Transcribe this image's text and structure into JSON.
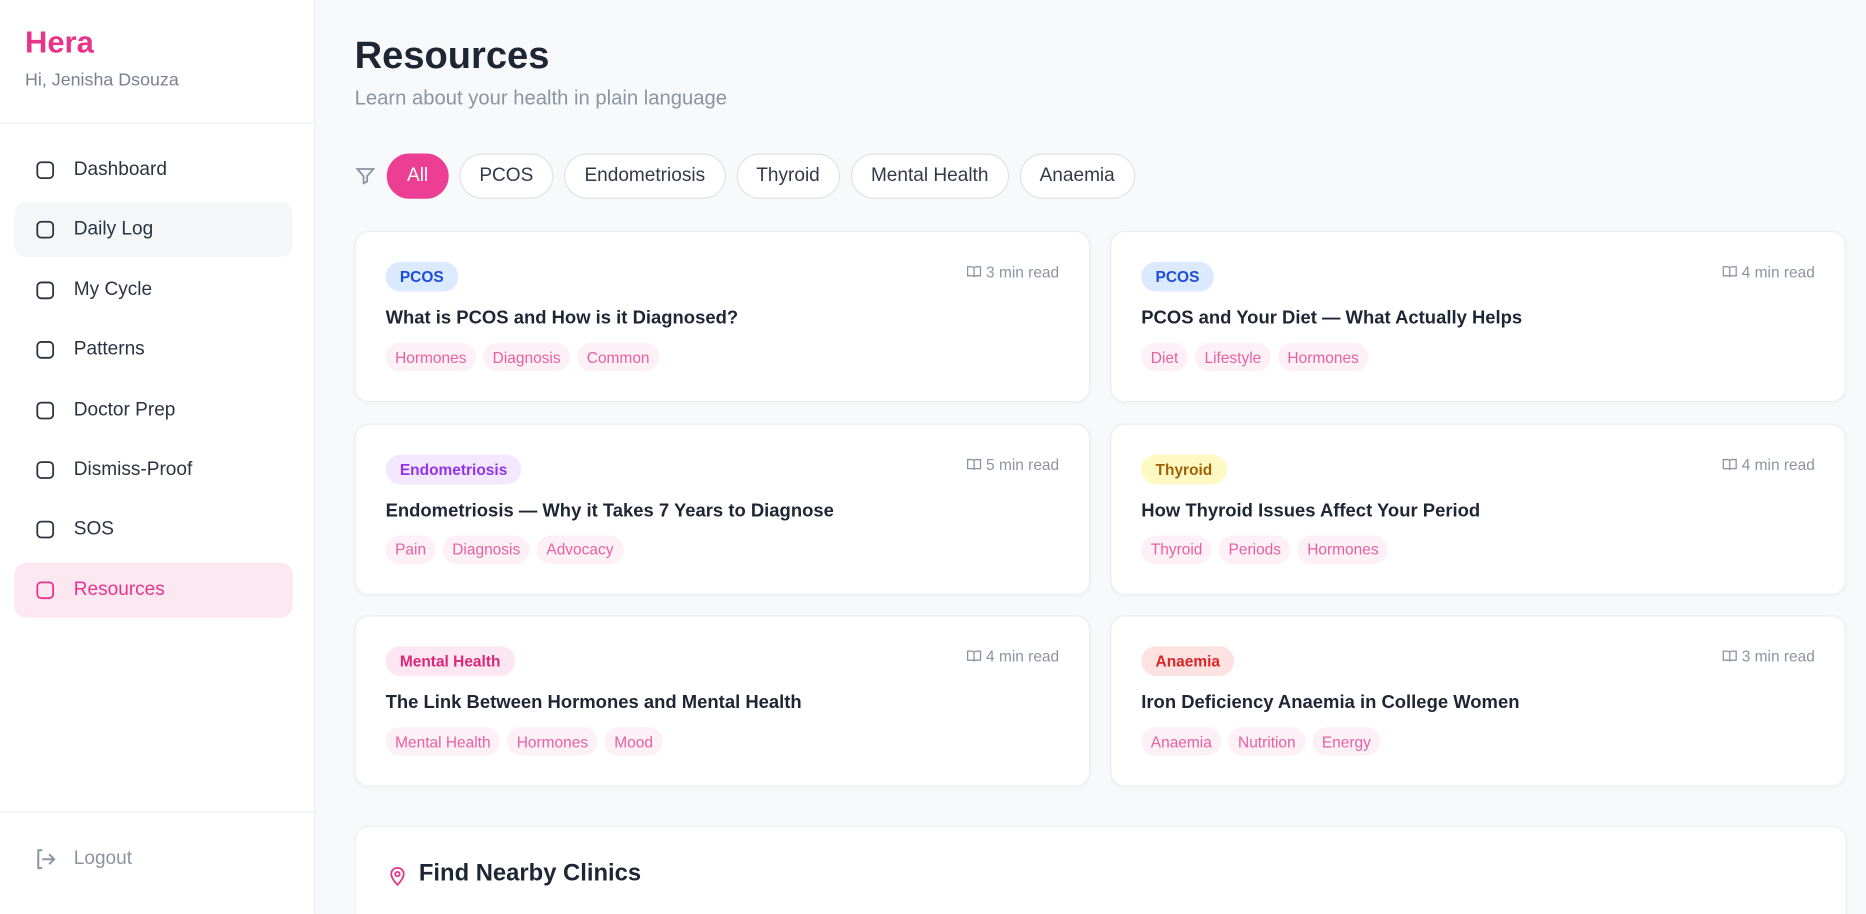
{
  "sidebar": {
    "brand": "Hera",
    "greeting": "Hi, Jenisha Dsouza",
    "nav": [
      "Dashboard",
      "Daily Log",
      "My Cycle",
      "Patterns",
      "Doctor Prep",
      "Dismiss-Proof",
      "SOS",
      "Resources"
    ],
    "logout": "Logout"
  },
  "header": {
    "title": "Resources",
    "subtitle": "Learn about your health in plain language"
  },
  "filters": [
    "All",
    "PCOS",
    "Endometriosis",
    "Thyroid",
    "Mental Health",
    "Anaemia"
  ],
  "articles": [
    {
      "category": "PCOS",
      "read_time": "3 min read",
      "title": "What is PCOS and How is it Diagnosed?",
      "tags": [
        "Hormones",
        "Diagnosis",
        "Common"
      ]
    },
    {
      "category": "PCOS",
      "read_time": "4 min read",
      "title": "PCOS and Your Diet — What Actually Helps",
      "tags": [
        "Diet",
        "Lifestyle",
        "Hormones"
      ]
    },
    {
      "category": "Endometriosis",
      "read_time": "5 min read",
      "title": "Endometriosis — Why it Takes 7 Years to Diagnose",
      "tags": [
        "Pain",
        "Diagnosis",
        "Advocacy"
      ]
    },
    {
      "category": "Thyroid",
      "read_time": "4 min read",
      "title": "How Thyroid Issues Affect Your Period",
      "tags": [
        "Thyroid",
        "Periods",
        "Hormones"
      ]
    },
    {
      "category": "Mental Health",
      "read_time": "4 min read",
      "title": "The Link Between Hormones and Mental Health",
      "tags": [
        "Mental Health",
        "Hormones",
        "Mood"
      ]
    },
    {
      "category": "Anaemia",
      "read_time": "3 min read",
      "title": "Iron Deficiency Anaemia in College Women",
      "tags": [
        "Anaemia",
        "Nutrition",
        "Energy"
      ]
    }
  ],
  "clinics": {
    "title": "Find Nearby Clinics"
  }
}
